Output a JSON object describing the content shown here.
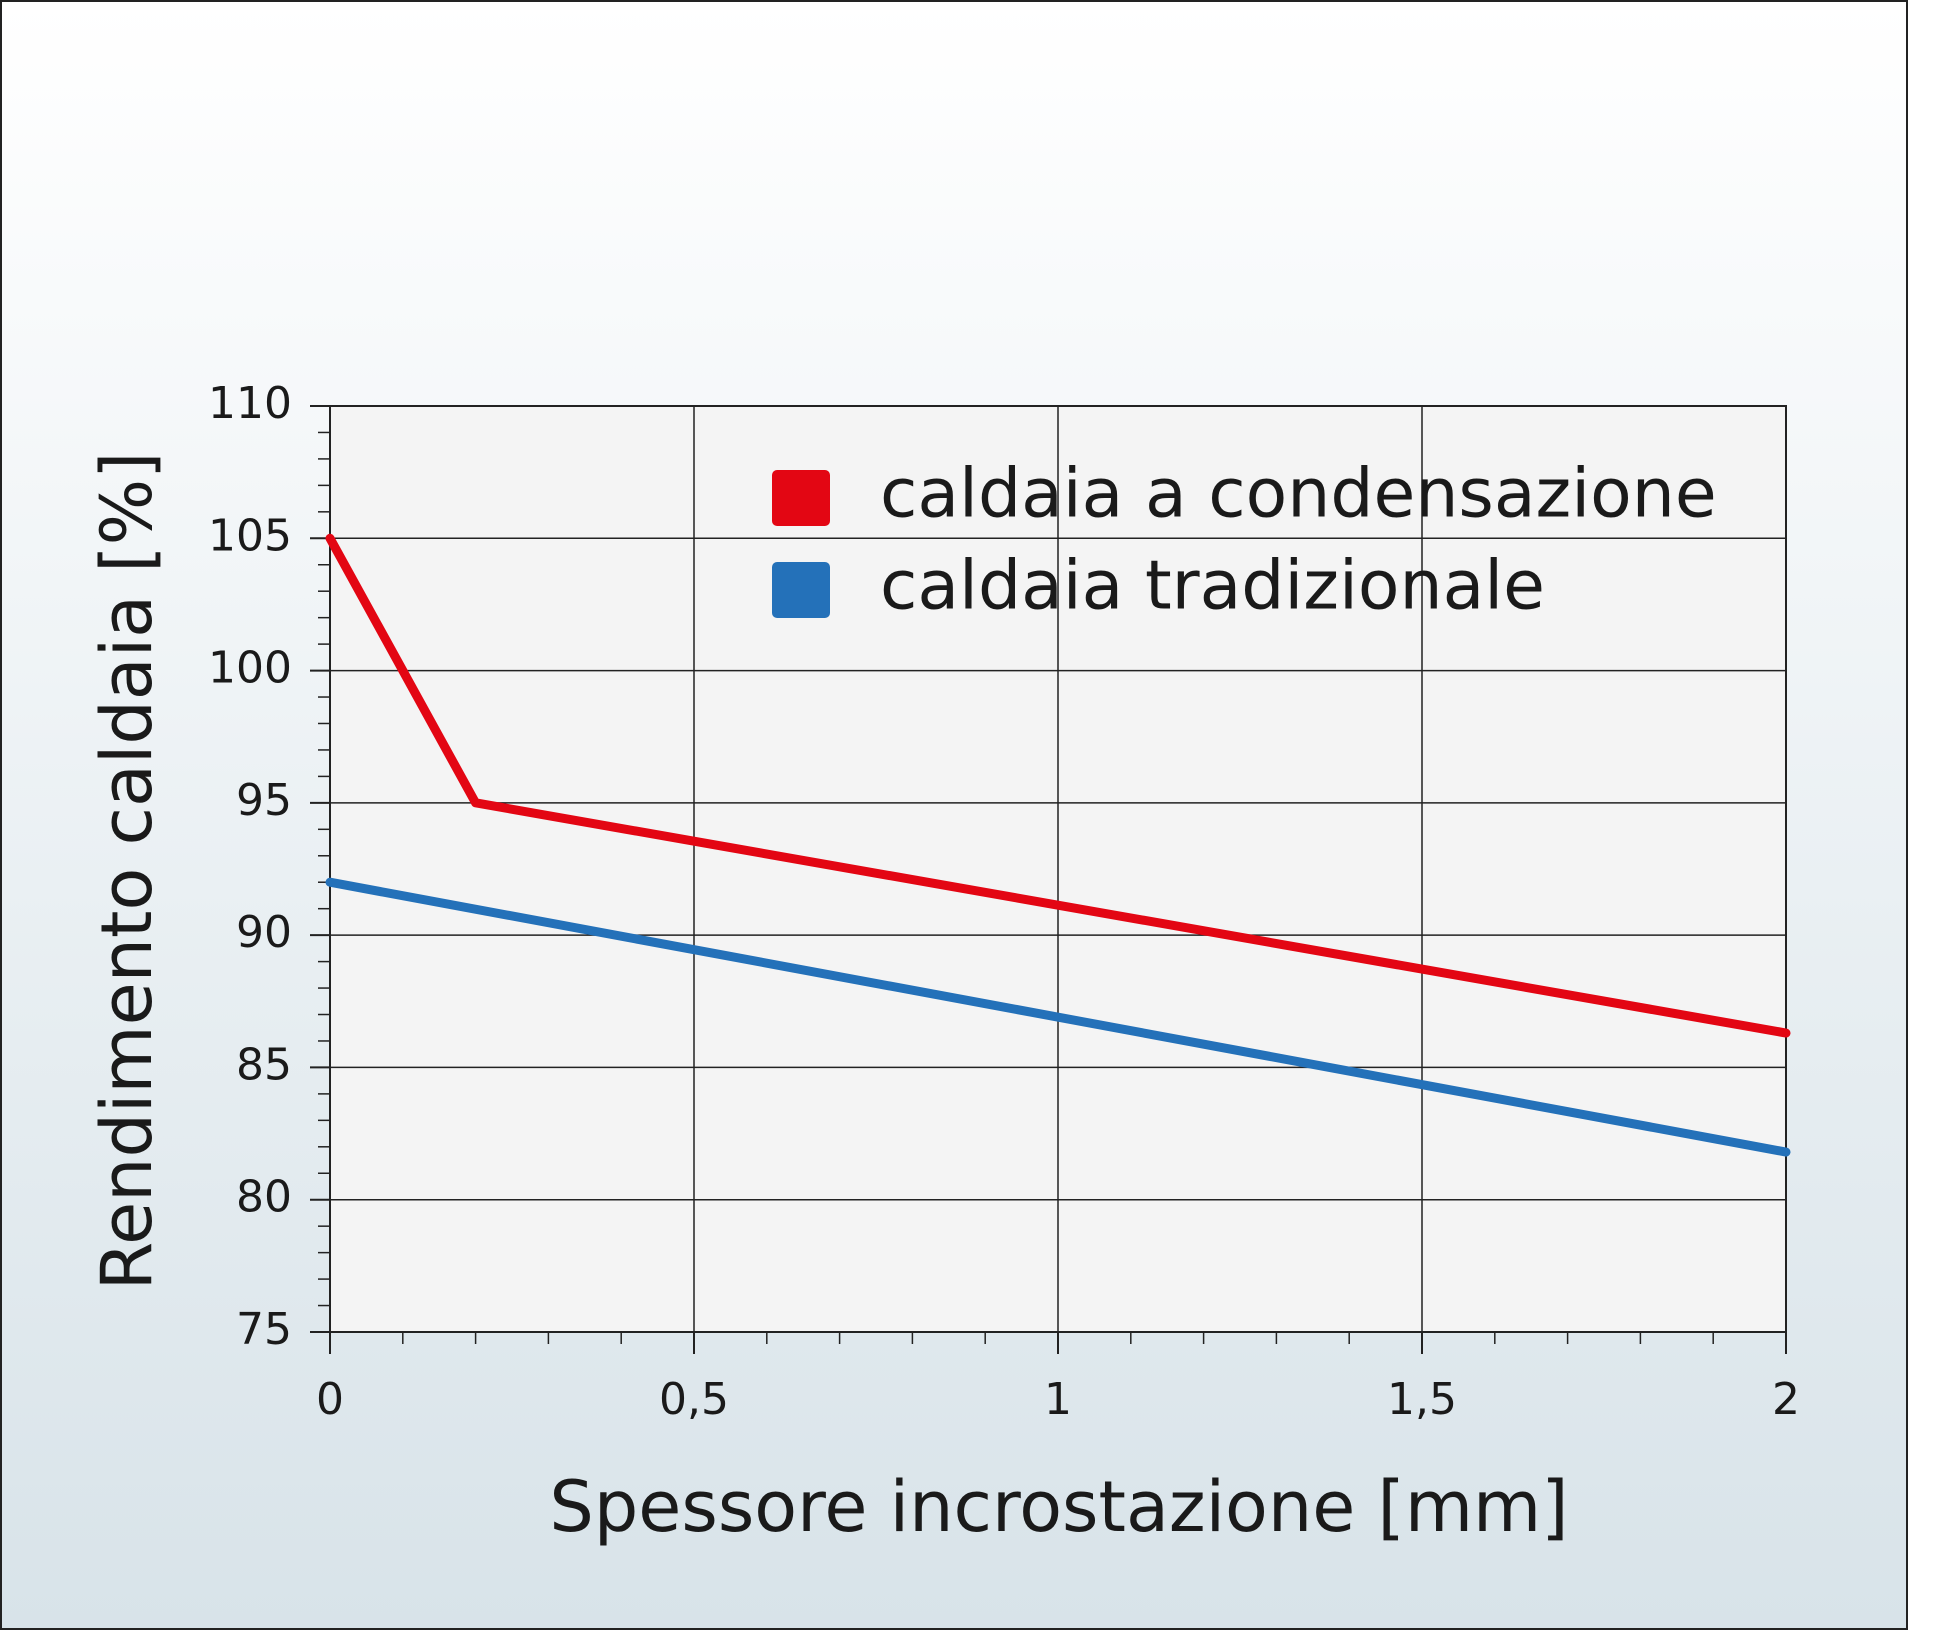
{
  "chart_data": {
    "type": "line",
    "x_label": "Spessore incrostazione [mm]",
    "y_label": "Rendimento caldaia [%]",
    "series": [
      {
        "name": "caldaia a condensazione",
        "color": "#e30613",
        "x": [
          0,
          0.2,
          2
        ],
        "values": [
          105,
          95,
          86.3
        ]
      },
      {
        "name": "caldaia tradizionale",
        "color": "#2471b9",
        "x": [
          0,
          2
        ],
        "values": [
          92,
          81.8
        ]
      }
    ],
    "xlim": [
      0,
      2
    ],
    "xticks": [
      0,
      {
        "value": 0.5,
        "label": "0,5"
      },
      1,
      {
        "value": 1.5,
        "label": "1,5"
      },
      2
    ],
    "ylim": [
      75,
      110
    ],
    "yticks": [
      75,
      80,
      85,
      90,
      95,
      100,
      105,
      110
    ],
    "grid": true,
    "legend": "top-right"
  }
}
